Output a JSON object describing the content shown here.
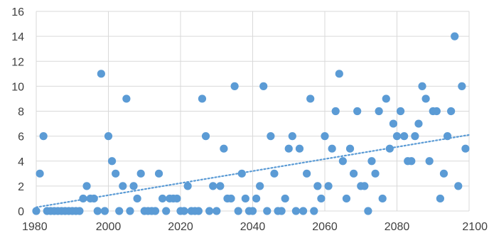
{
  "chart_data": {
    "type": "scatter",
    "title": "",
    "xlabel": "",
    "ylabel": "",
    "xlim": [
      1980,
      2100
    ],
    "ylim": [
      0,
      16
    ],
    "x_ticks": [
      1980,
      2000,
      2020,
      2040,
      2060,
      2080,
      2100
    ],
    "y_ticks": [
      0,
      2,
      4,
      6,
      8,
      10,
      12,
      14,
      16
    ],
    "grid": "horizontal and vertical major gridlines",
    "legend": "none",
    "colors": {
      "marker": "#5b9bd5",
      "trendline": "#5b9bd5",
      "grid": "#d9d9d9",
      "tick_label": "#404040"
    },
    "series": [
      {
        "values": [
          [
            1980,
            0
          ],
          [
            1981,
            3
          ],
          [
            1982,
            6
          ],
          [
            1983,
            0
          ],
          [
            1984,
            0
          ],
          [
            1985,
            0
          ],
          [
            1986,
            0
          ],
          [
            1987,
            0
          ],
          [
            1988,
            0
          ],
          [
            1989,
            0
          ],
          [
            1990,
            0
          ],
          [
            1991,
            0
          ],
          [
            1992,
            0
          ],
          [
            1993,
            1
          ],
          [
            1994,
            2
          ],
          [
            1995,
            1
          ],
          [
            1996,
            1
          ],
          [
            1997,
            0
          ],
          [
            1998,
            11
          ],
          [
            1999,
            0
          ],
          [
            2000,
            6
          ],
          [
            2001,
            4
          ],
          [
            2002,
            3
          ],
          [
            2003,
            0
          ],
          [
            2004,
            2
          ],
          [
            2005,
            9
          ],
          [
            2006,
            0
          ],
          [
            2007,
            2
          ],
          [
            2008,
            1
          ],
          [
            2009,
            3
          ],
          [
            2010,
            0
          ],
          [
            2011,
            0
          ],
          [
            2012,
            0
          ],
          [
            2013,
            0
          ],
          [
            2014,
            3
          ],
          [
            2015,
            1
          ],
          [
            2016,
            0
          ],
          [
            2017,
            1
          ],
          [
            2018,
            1
          ],
          [
            2019,
            1
          ],
          [
            2020,
            0
          ],
          [
            2021,
            0
          ],
          [
            2022,
            2
          ],
          [
            2023,
            0
          ],
          [
            2024,
            0
          ],
          [
            2025,
            0
          ],
          [
            2026,
            9
          ],
          [
            2027,
            6
          ],
          [
            2028,
            0
          ],
          [
            2029,
            2
          ],
          [
            2030,
            0
          ],
          [
            2031,
            2
          ],
          [
            2032,
            5
          ],
          [
            2033,
            1
          ],
          [
            2034,
            1
          ],
          [
            2035,
            10
          ],
          [
            2036,
            0
          ],
          [
            2037,
            3
          ],
          [
            2038,
            1
          ],
          [
            2039,
            0
          ],
          [
            2040,
            0
          ],
          [
            2041,
            1
          ],
          [
            2042,
            2
          ],
          [
            2043,
            10
          ],
          [
            2044,
            0
          ],
          [
            2045,
            6
          ],
          [
            2046,
            3
          ],
          [
            2047,
            0
          ],
          [
            2048,
            0
          ],
          [
            2049,
            1
          ],
          [
            2050,
            5
          ],
          [
            2051,
            6
          ],
          [
            2052,
            0
          ],
          [
            2053,
            5
          ],
          [
            2054,
            0
          ],
          [
            2055,
            3
          ],
          [
            2056,
            9
          ],
          [
            2057,
            0
          ],
          [
            2058,
            2
          ],
          [
            2059,
            1
          ],
          [
            2060,
            6
          ],
          [
            2061,
            2
          ],
          [
            2062,
            5
          ],
          [
            2063,
            8
          ],
          [
            2064,
            11
          ],
          [
            2065,
            4
          ],
          [
            2066,
            1
          ],
          [
            2067,
            5
          ],
          [
            2068,
            3
          ],
          [
            2069,
            8
          ],
          [
            2070,
            2
          ],
          [
            2071,
            2
          ],
          [
            2072,
            0
          ],
          [
            2073,
            4
          ],
          [
            2074,
            3
          ],
          [
            2075,
            8
          ],
          [
            2076,
            1
          ],
          [
            2077,
            9
          ],
          [
            2078,
            5
          ],
          [
            2079,
            7
          ],
          [
            2080,
            6
          ],
          [
            2081,
            8
          ],
          [
            2082,
            6
          ],
          [
            2083,
            4
          ],
          [
            2084,
            4
          ],
          [
            2085,
            6
          ],
          [
            2086,
            7
          ],
          [
            2087,
            10
          ],
          [
            2088,
            9
          ],
          [
            2089,
            4
          ],
          [
            2090,
            8
          ],
          [
            2091,
            8
          ],
          [
            2092,
            1
          ],
          [
            2093,
            3
          ],
          [
            2094,
            6
          ],
          [
            2095,
            8
          ],
          [
            2096,
            14
          ],
          [
            2097,
            2
          ],
          [
            2098,
            10
          ],
          [
            2099,
            5
          ]
        ]
      }
    ],
    "trendline": {
      "type": "linear",
      "style": "dotted",
      "points": [
        [
          1980,
          0.3
        ],
        [
          2100,
          6.1
        ]
      ]
    }
  }
}
